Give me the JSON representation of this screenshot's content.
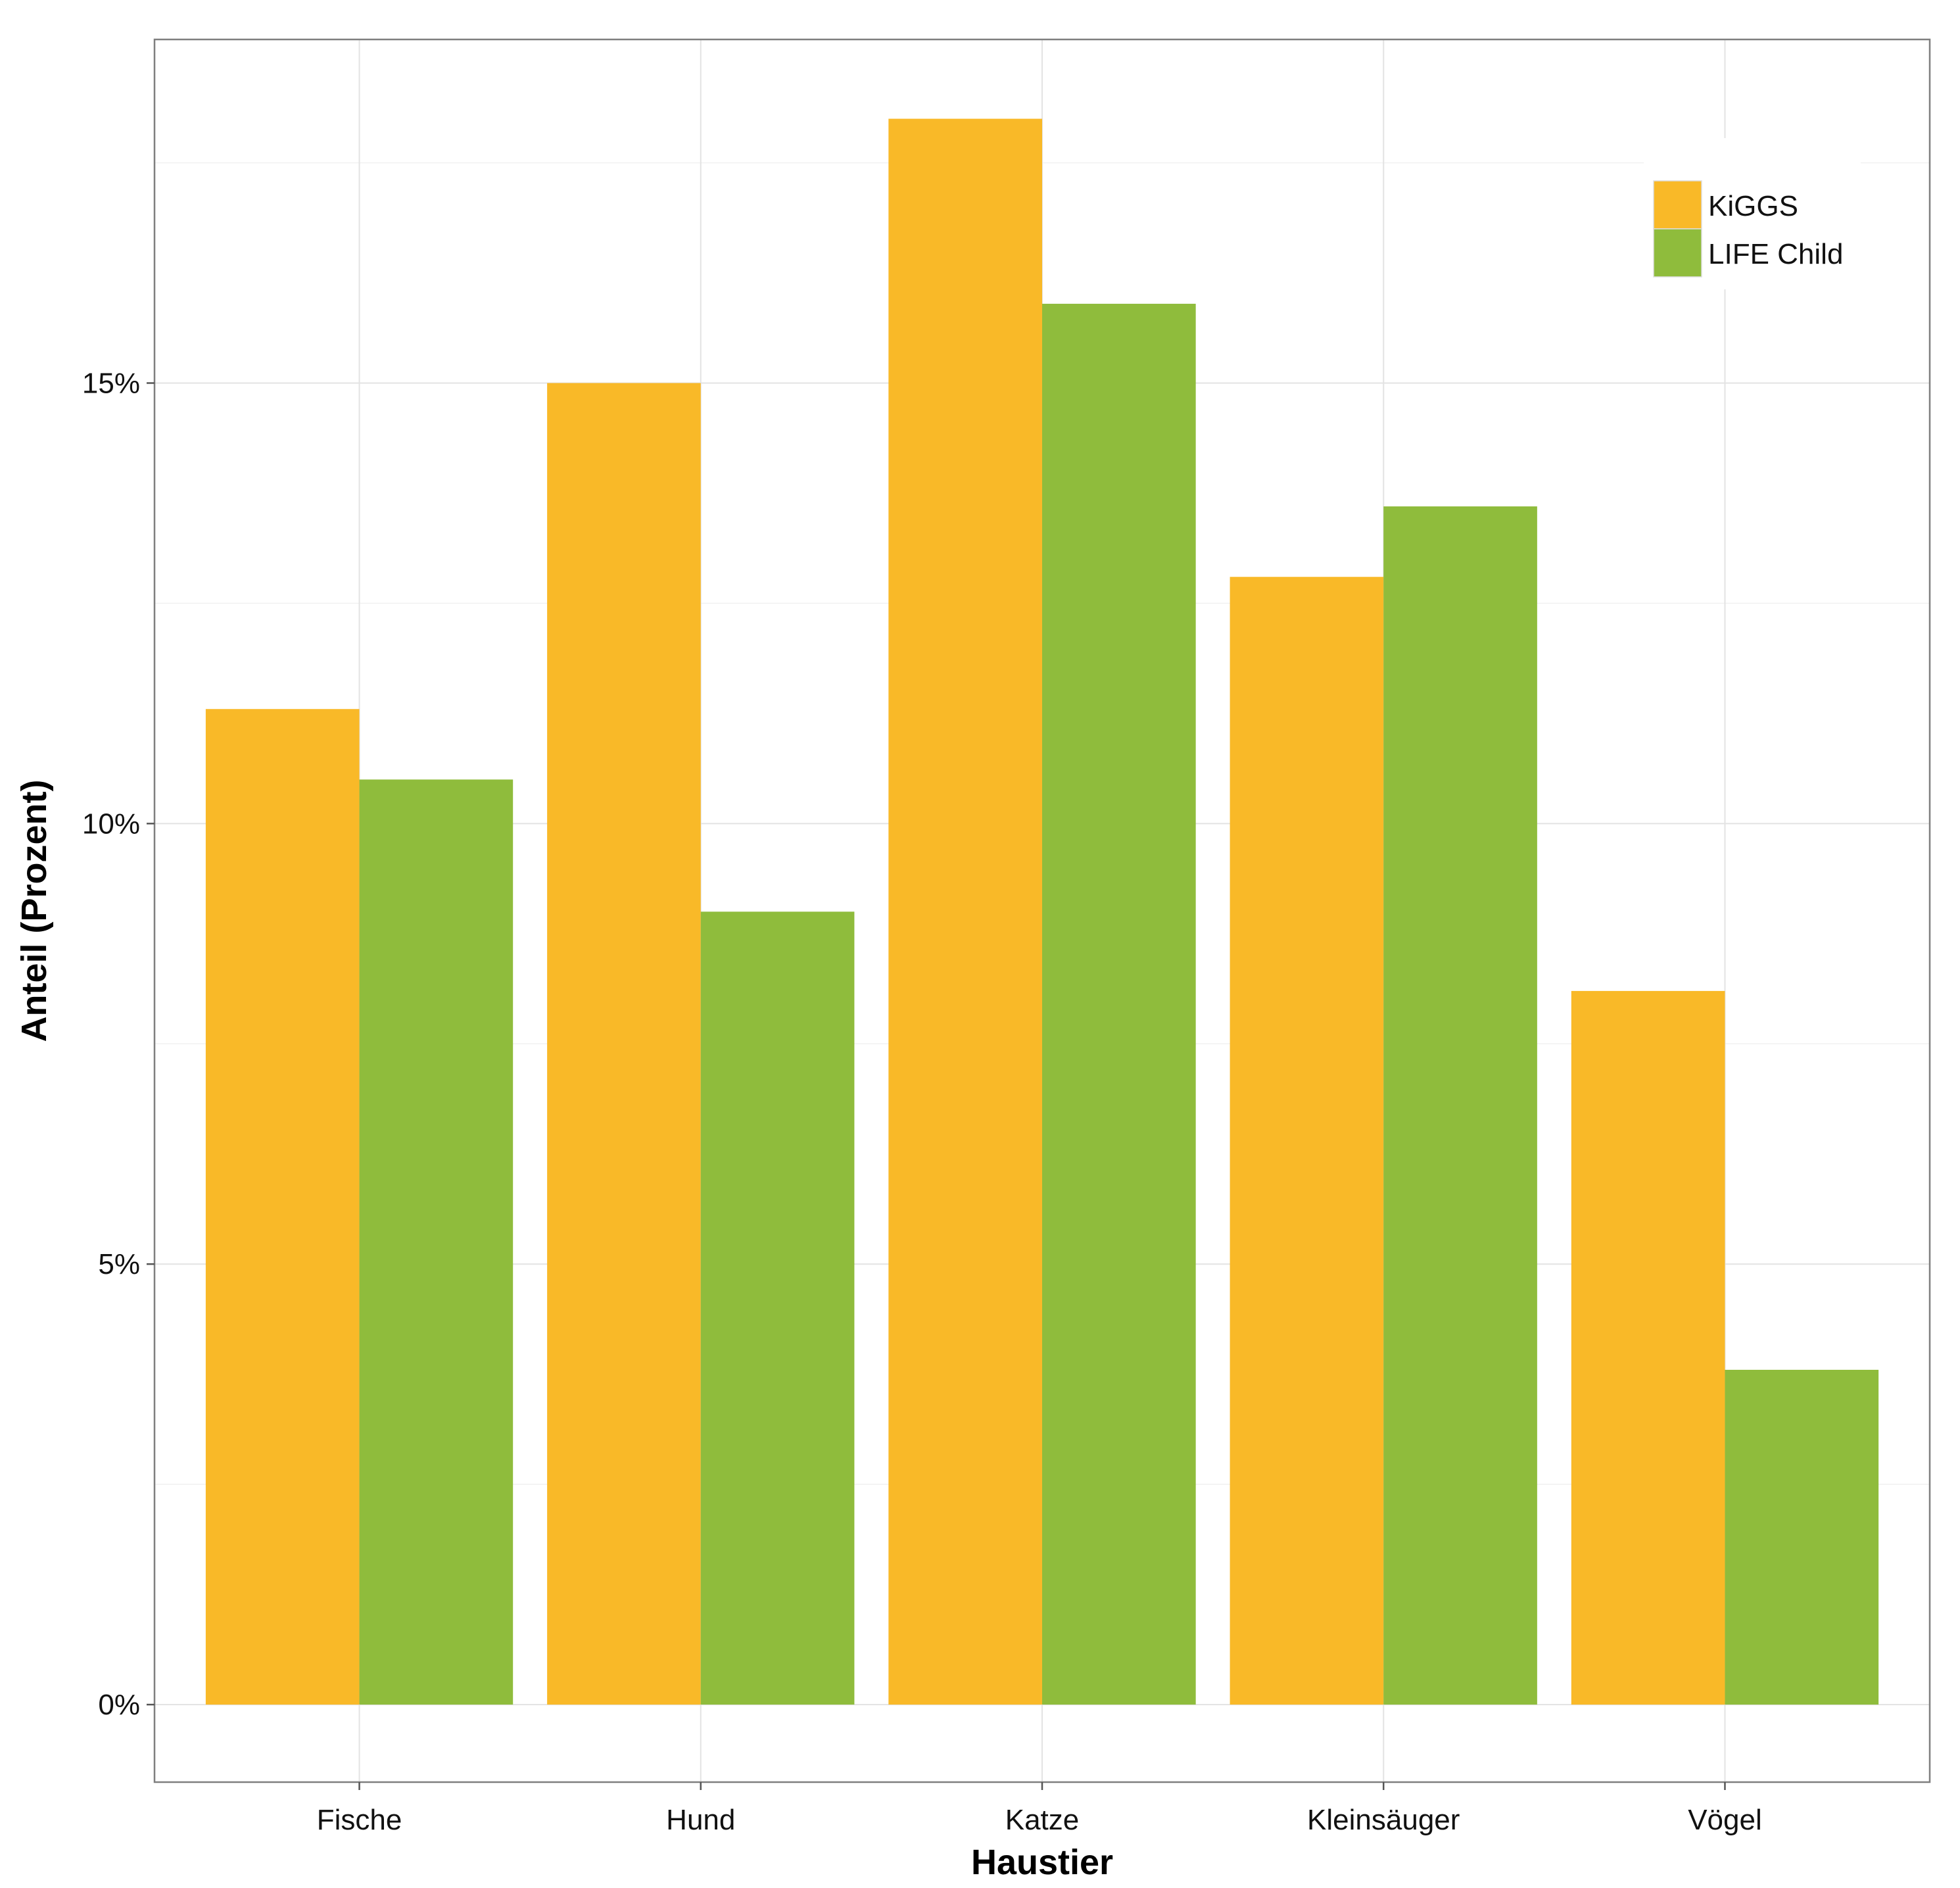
{
  "chart_data": {
    "type": "bar",
    "title": "",
    "xlabel": "Haustier",
    "ylabel": "Anteil (Prozent)",
    "categories": [
      "Fische",
      "Hund",
      "Katze",
      "Kleinsäuger",
      "Vögel"
    ],
    "series": [
      {
        "name": "KiGGS",
        "color": "#F9B928",
        "values": [
          11.3,
          15.0,
          18.0,
          12.8,
          8.1
        ]
      },
      {
        "name": "LIFE Child",
        "color": "#8FBC3C",
        "values": [
          10.5,
          9.0,
          15.9,
          13.6,
          3.8
        ]
      }
    ],
    "ylim": [
      -0.88,
      18.9
    ],
    "yticks": [
      0,
      5,
      10,
      15
    ],
    "ytick_labels": [
      "0%",
      "5%",
      "10%",
      "15%"
    ],
    "grid": true,
    "legend_position": "top-right"
  }
}
